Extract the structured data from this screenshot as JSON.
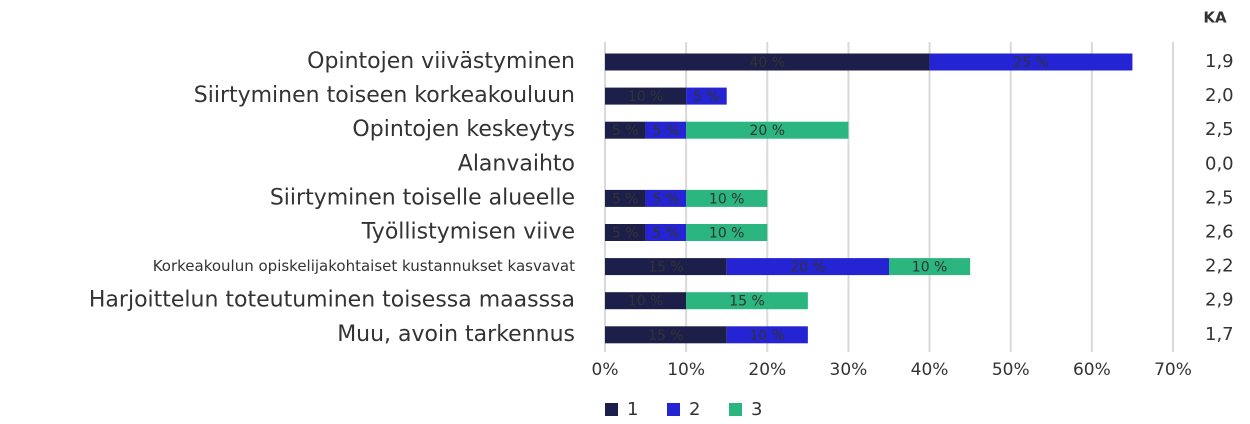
{
  "chart_data": {
    "type": "stacked-barh",
    "categories": [
      "Opintojen viivästyminen",
      "Siirtyminen toiseen korkeakouluun",
      "Opintojen keskeytys",
      "Alanvaihto",
      "Siirtyminen toiselle alueelle",
      "Työllistymisen viive",
      "Korkeakoulun opiskelijakohtaiset kustannukset kasvavat",
      "Harjoittelun toteutuminen toisessa maasssa",
      "Muu, avoin tarkennus"
    ],
    "series": [
      {
        "name": "1",
        "color": "#1c1f4a",
        "values": [
          40,
          10,
          5,
          0,
          5,
          5,
          15,
          10,
          15
        ],
        "value_labels": [
          "40 %",
          "10 %",
          "5 %",
          null,
          "5 %",
          "5 %",
          "15 %",
          "10 %",
          "15 %"
        ]
      },
      {
        "name": "2",
        "color": "#2424d4",
        "values": [
          25,
          5,
          5,
          0,
          5,
          5,
          20,
          0,
          10
        ],
        "value_labels": [
          "25 %",
          "5 %",
          "5 %",
          null,
          "5 %",
          "5 %",
          "20 %",
          null,
          "10 %"
        ]
      },
      {
        "name": "3",
        "color": "#2bb57f",
        "values": [
          0,
          0,
          20,
          0,
          10,
          10,
          10,
          15,
          0
        ],
        "value_labels": [
          null,
          null,
          "20 %",
          null,
          "10 %",
          "10 %",
          "10 %",
          "15 %",
          null
        ]
      }
    ],
    "xlim": [
      0,
      70
    ],
    "xticks": [
      {
        "value": 0,
        "label": "0%"
      },
      {
        "value": 10,
        "label": "10%"
      },
      {
        "value": 20,
        "label": "20%"
      },
      {
        "value": 30,
        "label": "30%"
      },
      {
        "value": 40,
        "label": "40%"
      },
      {
        "value": 50,
        "label": "50%"
      },
      {
        "value": 60,
        "label": "60%"
      },
      {
        "value": 70,
        "label": "70%"
      }
    ],
    "grid": true,
    "side_header": "KA",
    "side_values": [
      "1,9",
      "2,0",
      "2,5",
      "0,0",
      "2,5",
      "2,6",
      "2,2",
      "2,9",
      "1,7"
    ]
  }
}
